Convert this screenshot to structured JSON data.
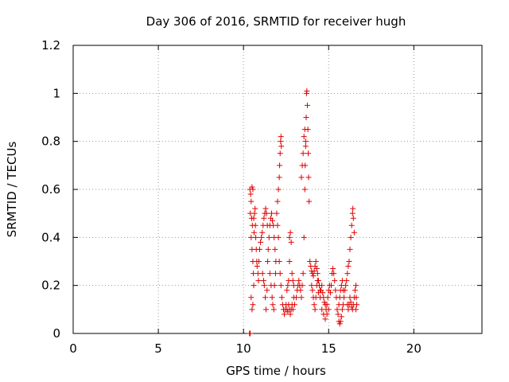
{
  "chart_data": {
    "type": "scatter",
    "title": "Day 306 of 2016, SRMTID for receiver hugh",
    "xlabel": "GPS time / hours",
    "ylabel": "SRMTID / TECUs",
    "xlim": [
      0,
      24
    ],
    "ylim": [
      0,
      1.2
    ],
    "x_ticks": [
      "0",
      "5",
      "10",
      "15",
      "20"
    ],
    "y_ticks": [
      "0",
      "0.2",
      "0.4",
      "0.6",
      "0.8",
      "1",
      "1.2"
    ],
    "grid": true,
    "marker": "plus",
    "color": "#e00000",
    "series": [
      {
        "points": [
          [
            10.35,
            0.0
          ],
          [
            10.4,
            0.0
          ],
          [
            10.38,
            0.6
          ],
          [
            10.42,
            0.58
          ],
          [
            10.45,
            0.55
          ],
          [
            10.4,
            0.5
          ],
          [
            10.5,
            0.61
          ],
          [
            10.55,
            0.6
          ],
          [
            10.48,
            0.48
          ],
          [
            10.52,
            0.45
          ],
          [
            10.45,
            0.4
          ],
          [
            10.5,
            0.35
          ],
          [
            10.55,
            0.3
          ],
          [
            10.58,
            0.25
          ],
          [
            10.6,
            0.2
          ],
          [
            10.45,
            0.15
          ],
          [
            10.5,
            0.1
          ],
          [
            10.55,
            0.12
          ],
          [
            10.65,
            0.5
          ],
          [
            10.7,
            0.45
          ],
          [
            10.72,
            0.4
          ],
          [
            10.75,
            0.35
          ],
          [
            10.78,
            0.3
          ],
          [
            10.8,
            0.28
          ],
          [
            10.85,
            0.25
          ],
          [
            10.88,
            0.22
          ],
          [
            10.9,
            0.3
          ],
          [
            10.95,
            0.35
          ],
          [
            11.0,
            0.38
          ],
          [
            10.68,
            0.52
          ],
          [
            10.6,
            0.48
          ],
          [
            10.62,
            0.42
          ],
          [
            11.05,
            0.4
          ],
          [
            11.1,
            0.42
          ],
          [
            11.15,
            0.45
          ],
          [
            11.2,
            0.48
          ],
          [
            11.25,
            0.5
          ],
          [
            11.3,
            0.52
          ],
          [
            11.35,
            0.5
          ],
          [
            11.4,
            0.45
          ],
          [
            11.12,
            0.25
          ],
          [
            11.18,
            0.22
          ],
          [
            11.22,
            0.2
          ],
          [
            11.28,
            0.15
          ],
          [
            11.32,
            0.1
          ],
          [
            11.38,
            0.18
          ],
          [
            11.42,
            0.3
          ],
          [
            11.45,
            0.35
          ],
          [
            11.5,
            0.4
          ],
          [
            11.55,
            0.45
          ],
          [
            11.6,
            0.48
          ],
          [
            11.65,
            0.5
          ],
          [
            11.7,
            0.47
          ],
          [
            11.75,
            0.45
          ],
          [
            11.8,
            0.4
          ],
          [
            11.85,
            0.35
          ],
          [
            11.9,
            0.3
          ],
          [
            11.55,
            0.25
          ],
          [
            11.62,
            0.2
          ],
          [
            11.68,
            0.15
          ],
          [
            11.72,
            0.12
          ],
          [
            11.78,
            0.1
          ],
          [
            11.82,
            0.2
          ],
          [
            11.88,
            0.25
          ],
          [
            11.95,
            0.5
          ],
          [
            12.0,
            0.55
          ],
          [
            12.05,
            0.6
          ],
          [
            12.1,
            0.65
          ],
          [
            12.12,
            0.7
          ],
          [
            12.15,
            0.75
          ],
          [
            12.18,
            0.8
          ],
          [
            12.2,
            0.82
          ],
          [
            12.22,
            0.78
          ],
          [
            12.0,
            0.45
          ],
          [
            12.05,
            0.4
          ],
          [
            12.1,
            0.3
          ],
          [
            12.15,
            0.25
          ],
          [
            12.2,
            0.2
          ],
          [
            12.25,
            0.15
          ],
          [
            12.3,
            0.12
          ],
          [
            12.35,
            0.1
          ],
          [
            12.4,
            0.08
          ],
          [
            12.45,
            0.1
          ],
          [
            12.5,
            0.12
          ],
          [
            12.55,
            0.1
          ],
          [
            12.6,
            0.09
          ],
          [
            12.65,
            0.12
          ],
          [
            12.7,
            0.1
          ],
          [
            12.75,
            0.08
          ],
          [
            12.8,
            0.1
          ],
          [
            12.85,
            0.12
          ],
          [
            12.9,
            0.1
          ],
          [
            12.95,
            0.15
          ],
          [
            13.0,
            0.12
          ],
          [
            12.7,
            0.4
          ],
          [
            12.75,
            0.42
          ],
          [
            12.8,
            0.38
          ],
          [
            12.6,
            0.2
          ],
          [
            12.65,
            0.22
          ],
          [
            12.55,
            0.18
          ],
          [
            12.7,
            0.3
          ],
          [
            12.85,
            0.25
          ],
          [
            12.9,
            0.22
          ],
          [
            12.95,
            0.2
          ],
          [
            13.1,
            0.15
          ],
          [
            13.15,
            0.18
          ],
          [
            13.2,
            0.2
          ],
          [
            13.25,
            0.22
          ],
          [
            13.3,
            0.2
          ],
          [
            13.35,
            0.18
          ],
          [
            13.4,
            0.15
          ],
          [
            13.45,
            0.2
          ],
          [
            13.5,
            0.25
          ],
          [
            13.55,
            0.4
          ],
          [
            13.6,
            0.6
          ],
          [
            13.62,
            0.7
          ],
          [
            13.65,
            0.8
          ],
          [
            13.68,
            0.9
          ],
          [
            13.7,
            1.0
          ],
          [
            13.72,
            1.01
          ],
          [
            13.75,
            0.95
          ],
          [
            13.78,
            0.85
          ],
          [
            13.8,
            0.75
          ],
          [
            13.82,
            0.65
          ],
          [
            13.85,
            0.55
          ],
          [
            13.4,
            0.65
          ],
          [
            13.45,
            0.7
          ],
          [
            13.5,
            0.75
          ],
          [
            13.55,
            0.82
          ],
          [
            13.6,
            0.85
          ],
          [
            13.65,
            0.78
          ],
          [
            13.9,
            0.3
          ],
          [
            13.95,
            0.28
          ],
          [
            14.0,
            0.26
          ],
          [
            14.05,
            0.25
          ],
          [
            14.1,
            0.24
          ],
          [
            14.15,
            0.26
          ],
          [
            14.2,
            0.28
          ],
          [
            14.25,
            0.3
          ],
          [
            14.3,
            0.27
          ],
          [
            14.35,
            0.25
          ],
          [
            14.4,
            0.22
          ],
          [
            14.45,
            0.2
          ],
          [
            14.5,
            0.18
          ],
          [
            14.0,
            0.2
          ],
          [
            14.05,
            0.18
          ],
          [
            14.1,
            0.15
          ],
          [
            14.15,
            0.12
          ],
          [
            14.2,
            0.1
          ],
          [
            14.25,
            0.15
          ],
          [
            14.3,
            0.2
          ],
          [
            14.35,
            0.22
          ],
          [
            14.4,
            0.17
          ],
          [
            14.5,
            0.15
          ],
          [
            14.55,
            0.18
          ],
          [
            14.6,
            0.2
          ],
          [
            14.65,
            0.17
          ],
          [
            14.7,
            0.15
          ],
          [
            14.75,
            0.13
          ],
          [
            14.8,
            0.12
          ],
          [
            14.85,
            0.1
          ],
          [
            14.9,
            0.12
          ],
          [
            14.95,
            0.15
          ],
          [
            15.0,
            0.18
          ],
          [
            15.05,
            0.2
          ],
          [
            15.1,
            0.17
          ],
          [
            15.15,
            0.2
          ],
          [
            15.2,
            0.25
          ],
          [
            15.25,
            0.27
          ],
          [
            14.6,
            0.1
          ],
          [
            14.7,
            0.08
          ],
          [
            14.8,
            0.06
          ],
          [
            14.9,
            0.08
          ],
          [
            15.0,
            0.1
          ],
          [
            15.3,
            0.25
          ],
          [
            15.35,
            0.22
          ],
          [
            15.4,
            0.18
          ],
          [
            15.45,
            0.15
          ],
          [
            15.5,
            0.1
          ],
          [
            15.55,
            0.08
          ],
          [
            15.6,
            0.05
          ],
          [
            15.65,
            0.04
          ],
          [
            15.7,
            0.05
          ],
          [
            15.75,
            0.07
          ],
          [
            15.8,
            0.1
          ],
          [
            15.85,
            0.12
          ],
          [
            15.9,
            0.15
          ],
          [
            15.95,
            0.18
          ],
          [
            16.0,
            0.2
          ],
          [
            16.05,
            0.22
          ],
          [
            15.6,
            0.12
          ],
          [
            15.65,
            0.15
          ],
          [
            15.7,
            0.18
          ],
          [
            15.75,
            0.2
          ],
          [
            15.8,
            0.22
          ],
          [
            15.85,
            0.18
          ],
          [
            16.1,
            0.25
          ],
          [
            16.15,
            0.28
          ],
          [
            16.2,
            0.3
          ],
          [
            16.25,
            0.35
          ],
          [
            16.3,
            0.4
          ],
          [
            16.35,
            0.45
          ],
          [
            16.4,
            0.5
          ],
          [
            16.42,
            0.52
          ],
          [
            16.45,
            0.48
          ],
          [
            16.5,
            0.42
          ],
          [
            16.1,
            0.12
          ],
          [
            16.15,
            0.1
          ],
          [
            16.2,
            0.12
          ],
          [
            16.25,
            0.15
          ],
          [
            16.3,
            0.13
          ],
          [
            16.35,
            0.11
          ],
          [
            16.4,
            0.1
          ],
          [
            16.45,
            0.12
          ],
          [
            16.5,
            0.15
          ],
          [
            16.55,
            0.18
          ],
          [
            16.6,
            0.2
          ],
          [
            16.62,
            0.15
          ],
          [
            16.65,
            0.12
          ],
          [
            16.6,
            0.1
          ]
        ]
      }
    ]
  }
}
